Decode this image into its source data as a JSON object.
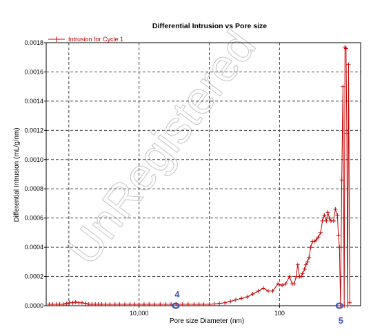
{
  "chart_data": {
    "type": "line",
    "title": "Differential Intrusion vs Pore size",
    "xlabel": "Pore size Diameter (nm)",
    "ylabel": "Differential Intrusion (mL/g/nm)",
    "x_scale": "log",
    "x_reversed": true,
    "xlim": [
      210000,
      7
    ],
    "ylim": [
      0,
      0.0018
    ],
    "x_ticks": [
      {
        "value": 10000,
        "label": "10,000"
      },
      {
        "value": 100,
        "label": "100"
      }
    ],
    "y_ticks": [
      "0.0000",
      "0.0002",
      "0.0004",
      "0.0006",
      "0.0008",
      "0.0010",
      "0.0012",
      "0.0014",
      "0.0016",
      "0.0018"
    ],
    "y_tick_values": [
      0,
      0.0002,
      0.0004,
      0.0006,
      0.0008,
      0.001,
      0.0012,
      0.0014,
      0.0016,
      0.0018
    ],
    "grid": true,
    "legend_position": "top-left",
    "series": [
      {
        "name": "Intrusion for Cycle 1",
        "color": "#c00000",
        "points": [
          [
            190000,
            1e-05
          ],
          [
            170000,
            1e-05
          ],
          [
            150000,
            1e-05
          ],
          [
            135000,
            1e-05
          ],
          [
            120000,
            1e-05
          ],
          [
            108000,
            1.5e-05
          ],
          [
            98000,
            2e-05
          ],
          [
            88000,
            2e-05
          ],
          [
            80000,
            2.5e-05
          ],
          [
            72000,
            2e-05
          ],
          [
            65000,
            2e-05
          ],
          [
            58000,
            1.5e-05
          ],
          [
            52000,
            1e-05
          ],
          [
            47000,
            1e-05
          ],
          [
            42000,
            1e-05
          ],
          [
            38000,
            1e-05
          ],
          [
            34000,
            1e-05
          ],
          [
            30000,
            1e-05
          ],
          [
            26000,
            1e-05
          ],
          [
            22000,
            1e-05
          ],
          [
            19000,
            1e-05
          ],
          [
            16000,
            1e-05
          ],
          [
            13500,
            1e-05
          ],
          [
            11500,
            1e-05
          ],
          [
            10000,
            1e-05
          ],
          [
            8500,
            1e-05
          ],
          [
            7200,
            1e-05
          ],
          [
            6000,
            1e-05
          ],
          [
            5000,
            1e-05
          ],
          [
            4200,
            1e-05
          ],
          [
            3500,
            1e-05
          ],
          [
            2900,
            1e-05
          ],
          [
            2400,
            1e-05
          ],
          [
            2000,
            1e-05
          ],
          [
            1650,
            1e-05
          ],
          [
            1400,
            1e-05
          ],
          [
            1200,
            1e-05
          ],
          [
            1000,
            1e-05
          ],
          [
            850,
            1.2e-05
          ],
          [
            720,
            1.5e-05
          ],
          [
            600,
            2e-05
          ],
          [
            500,
            3e-05
          ],
          [
            420,
            4e-05
          ],
          [
            350,
            5e-05
          ],
          [
            290,
            6e-05
          ],
          [
            240,
            8e-05
          ],
          [
            200,
            0.0001
          ],
          [
            170,
            0.00012
          ],
          [
            145,
            0.0001
          ],
          [
            125,
            0.0001
          ],
          [
            105,
            0.00015
          ],
          [
            92,
            0.00014
          ],
          [
            82,
            0.00015
          ],
          [
            72,
            0.0002
          ],
          [
            66,
            0.00015
          ],
          [
            62,
            0.00015
          ],
          [
            58,
            0.0002
          ],
          [
            55,
            0.00028
          ],
          [
            52,
            0.0002
          ],
          [
            49,
            0.0002
          ],
          [
            47,
            0.00022
          ],
          [
            44,
            0.00025
          ],
          [
            42,
            0.00028
          ],
          [
            40,
            0.0003
          ],
          [
            38,
            0.00033
          ],
          [
            36,
            0.0004
          ],
          [
            34,
            0.00044
          ],
          [
            32,
            0.00044
          ],
          [
            30,
            0.00045
          ],
          [
            28,
            0.00047
          ],
          [
            26,
            0.0005
          ],
          [
            24.5,
            0.00058
          ],
          [
            23,
            0.00062
          ],
          [
            21.5,
            0.00058
          ],
          [
            20.5,
            0.00064
          ],
          [
            19.5,
            0.0006
          ],
          [
            18.5,
            0.00058
          ],
          [
            17,
            0.00058
          ],
          [
            16,
            0.00066
          ],
          [
            15,
            0.00062
          ],
          [
            14.5,
            0.00048
          ],
          [
            14,
            0.0004
          ],
          [
            13.5,
            0.0
          ],
          [
            13,
            0.00086
          ],
          [
            12.5,
            0.0015
          ],
          [
            12,
            0.0
          ],
          [
            11.7,
            0.00177
          ],
          [
            11.3,
            0.00176
          ],
          [
            11,
            0.00118
          ],
          [
            10.7,
            0.0
          ],
          [
            10.4,
            0.00165
          ],
          [
            10,
            2e-05
          ]
        ]
      }
    ],
    "annotations": [
      {
        "label": "4",
        "x": 3000,
        "y": 0
      },
      {
        "label": "5",
        "x": 14,
        "y": 0
      }
    ]
  },
  "watermark": "UnRegistered",
  "colors": {
    "series": "#c00000",
    "annotation": "#3d55b5",
    "grid": "#404040",
    "watermark": "#c9c9c9"
  }
}
